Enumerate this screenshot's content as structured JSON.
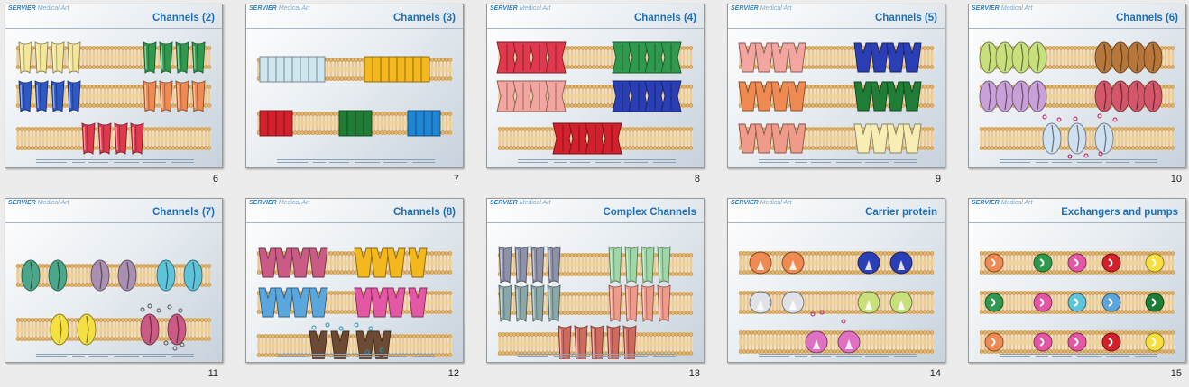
{
  "brand": {
    "primary": "SERVIER",
    "secondary": "Medical Art"
  },
  "slides": [
    {
      "number": "6",
      "title": "Channels (2)",
      "kind": "channels2"
    },
    {
      "number": "7",
      "title": "Channels (3)",
      "kind": "channels3"
    },
    {
      "number": "8",
      "title": "Channels (4)",
      "kind": "channels4"
    },
    {
      "number": "9",
      "title": "Channels (5)",
      "kind": "channels5"
    },
    {
      "number": "10",
      "title": "Channels (6)",
      "kind": "channels6"
    },
    {
      "number": "11",
      "title": "Channels (7)",
      "kind": "channels7"
    },
    {
      "number": "12",
      "title": "Channels (8)",
      "kind": "channels8"
    },
    {
      "number": "13",
      "title": "Complex Channels",
      "kind": "complex"
    },
    {
      "number": "14",
      "title": "Carrier protein",
      "kind": "carrier"
    },
    {
      "number": "15",
      "title": "Exchangers and pumps",
      "kind": "pumps"
    }
  ],
  "colors": {
    "title": "#1e6fb8",
    "membrane": "#e3b66f",
    "yellow": "#f4e79a",
    "green": "#2f9a4e",
    "blue": "#2e59c7",
    "orange": "#f08a53",
    "red": "#e0384d",
    "lightblue": "#cde6f0",
    "gold": "#f2b81d",
    "crimson": "#d3202d",
    "darkgreen": "#1f7d35",
    "azure": "#1f86d6",
    "pink": "#f3a6a0",
    "navy": "#2a3fb5",
    "pale": "#f8eeb4",
    "lime": "#c8df7b",
    "brown": "#b7763a",
    "lavender": "#c9a0d8",
    "rose": "#d4566a",
    "ice": "#cfe0f1",
    "teal": "#4ca68a",
    "mauve": "#a98fb0",
    "cyan": "#5fc4d9",
    "sun": "#f5e042",
    "magenta": "#c95b84",
    "darkbrown": "#6d4a33",
    "sky": "#5aa7de",
    "hotpink": "#e457a4",
    "slate": "#8d92a8",
    "mint": "#9fd7a6",
    "steel": "#8aa8a8",
    "salmon": "#f09a8a",
    "coral": "#d06a5f",
    "purplepink": "#e071c2"
  }
}
